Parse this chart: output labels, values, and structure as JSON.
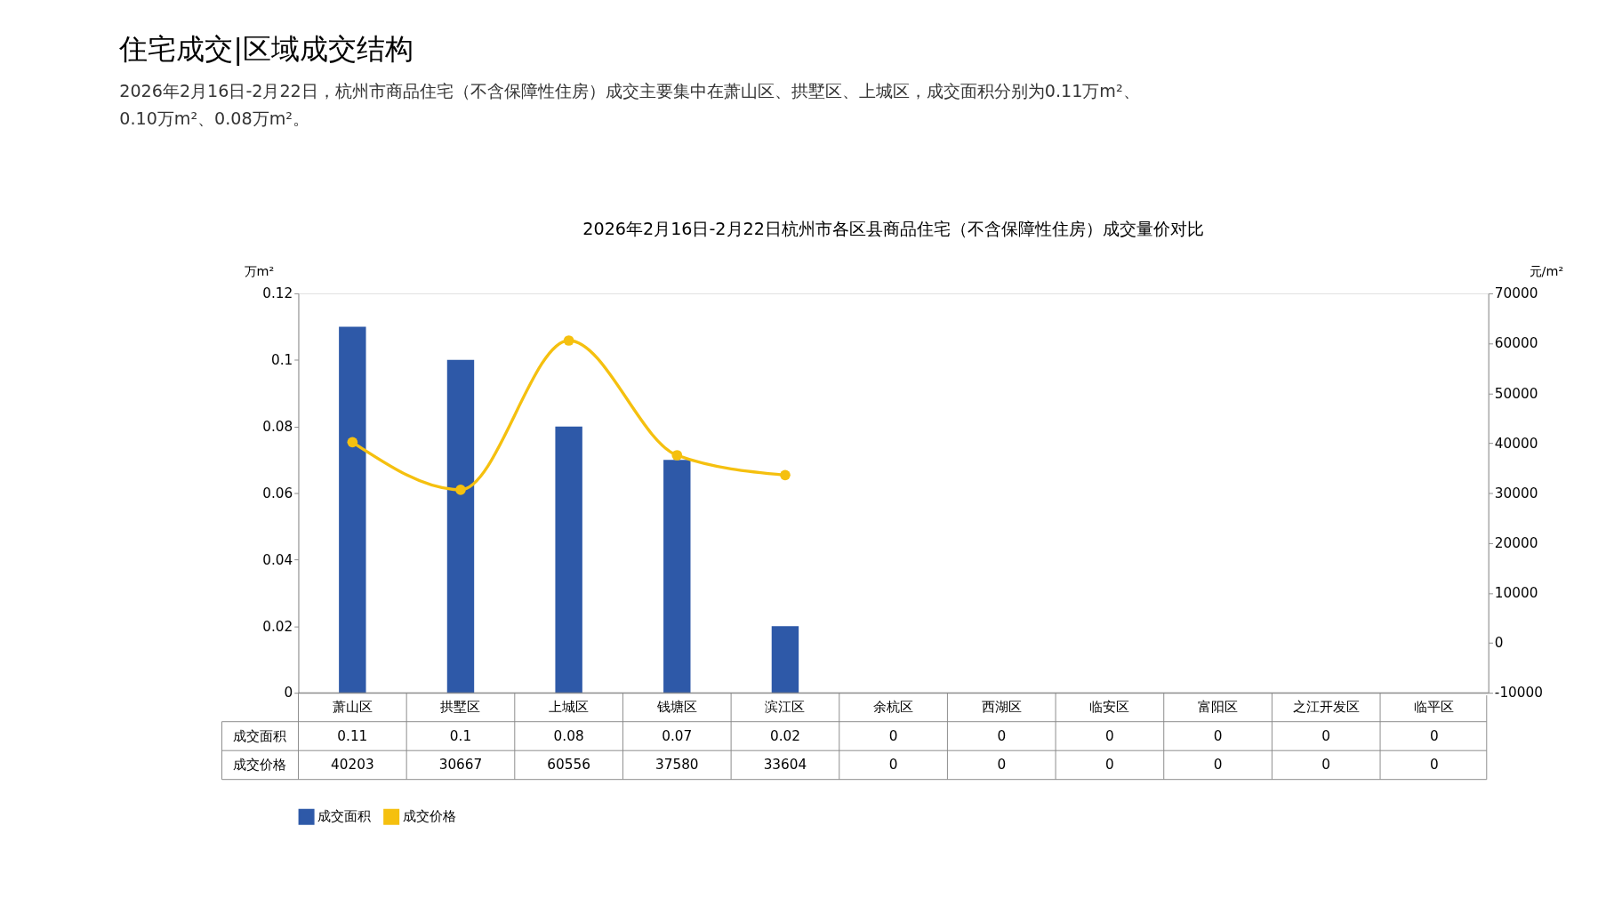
{
  "chart_data": {
    "type": "bar",
    "title": "住宅成交|区域成交结构",
    "subtitle": "2026年2月16日-2月22日，杭州市商品住宅（不含保障性住房）成交主要集中在萧山区、拱墅区、上城区，成交面积分别为0.11万m²、0.10万m²、0.08万m²。",
    "annotations": [
      "2026年2月16日-2月22日杭州市各区县商品住宅（不含保障性住房）成交量价对比"
    ],
    "ylabel": "万m²",
    "y2label": "元/m²",
    "categories": [
      "萧山区",
      "拱墅区",
      "上城区",
      "钱塘区",
      "滨江区",
      "余杭区",
      "西湖区",
      "临安区",
      "富阳区",
      "之江开发区",
      "临平区"
    ],
    "series": [
      {
        "name": "成交面积",
        "color": "#2e59a8",
        "values": [
          0.11,
          0.1,
          0.08,
          0.07,
          0.02,
          0,
          0,
          0,
          0,
          0,
          0
        ],
        "value_labels": [
          "0.11",
          "0.1",
          "0.08",
          "0.07",
          "0.02",
          "0",
          "0",
          "0",
          "0",
          "0",
          "0"
        ]
      },
      {
        "name": "成交价格",
        "type": "line",
        "axis": "y2",
        "color": "#f5c00f",
        "values": [
          40203,
          30667,
          60556,
          37580,
          33604,
          null,
          null,
          null,
          null,
          null,
          null
        ],
        "value_labels": [
          "40203",
          "30667",
          "60556",
          "37580",
          "33604",
          "0",
          "0",
          "0",
          "0",
          "0",
          "0"
        ]
      }
    ],
    "ylim": [
      0,
      0.12
    ],
    "yticks": [
      0,
      0.02,
      0.04,
      0.06,
      0.08,
      0.1,
      0.12
    ],
    "y2lim": [
      -10000,
      70000
    ],
    "y2ticks": [
      -10000,
      0,
      10000,
      20000,
      30000,
      40000,
      50000,
      60000,
      70000
    ],
    "grid": false,
    "legend": "bottom",
    "marker": "circle",
    "line_style": "solid"
  }
}
